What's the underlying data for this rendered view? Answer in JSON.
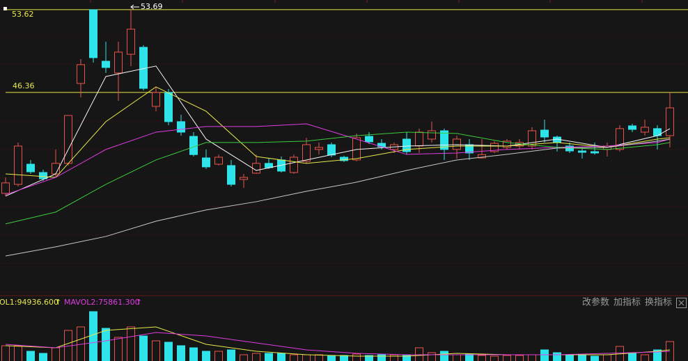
{
  "chart_data": {
    "type": "candlestick",
    "ylim": [
      28.54,
      54.47
    ],
    "grid": true,
    "ygrid": [
      51.36,
      48.86,
      46.36,
      43.86,
      41.36,
      38.86,
      36.36,
      33.86,
      31.36,
      28.86
    ],
    "up_color": "#e8544c",
    "down_color": "#2fe3ea",
    "open": [
      37.51,
      38.3,
      40.07,
      39.34,
      39.22,
      40.14,
      47.15,
      53.62,
      49.1,
      48.07,
      49.71,
      50.32,
      45.14,
      46.36,
      43.8,
      42.51,
      40.62,
      40.07,
      39.95,
      38.73,
      39.28,
      40.14,
      40.44,
      39.34,
      40.32,
      41.36,
      41.78,
      40.68,
      40.44,
      42.51,
      41.9,
      41.36,
      42.27,
      41.66,
      42.27,
      43.0,
      41.36,
      41.78,
      40.62,
      41.17,
      41.54,
      41.66,
      41.66,
      43.06,
      42.45,
      41.66,
      41.23,
      41.17,
      41.36,
      41.36,
      43.43,
      42.88,
      43.19,
      42.57
    ],
    "high": [
      38.91,
      41.97,
      40.44,
      39.59,
      41.36,
      44.34,
      49.29,
      53.62,
      50.81,
      50.81,
      53.69,
      50.51,
      46.85,
      46.66,
      44.41,
      42.88,
      41.36,
      40.91,
      40.44,
      39.22,
      40.91,
      40.56,
      40.74,
      40.91,
      42.39,
      41.97,
      41.97,
      40.81,
      42.76,
      42.88,
      42.27,
      41.97,
      42.88,
      43.19,
      43.8,
      43.19,
      42.57,
      42.27,
      42.27,
      42.09,
      42.27,
      42.27,
      43.31,
      43.98,
      42.57,
      41.97,
      41.54,
      41.97,
      41.97,
      43.49,
      43.61,
      43.98,
      43.49,
      46.36
    ],
    "low": [
      37.27,
      38.12,
      39.22,
      38.61,
      38.91,
      39.95,
      45.93,
      48.98,
      48.07,
      45.62,
      48.67,
      46.54,
      44.71,
      43.49,
      42.57,
      40.74,
      39.65,
      39.95,
      38.12,
      37.99,
      39.22,
      39.65,
      39.34,
      39.22,
      40.14,
      40.91,
      40.68,
      40.26,
      40.32,
      41.84,
      41.36,
      41.05,
      40.91,
      41.05,
      41.97,
      40.44,
      40.56,
      40.44,
      40.56,
      41.05,
      41.36,
      41.36,
      41.36,
      41.97,
      41.17,
      41.05,
      40.56,
      40.91,
      40.74,
      41.17,
      42.88,
      42.57,
      41.36,
      41.54
    ],
    "close": [
      38.43,
      41.66,
      39.4,
      38.79,
      40.14,
      44.34,
      48.8,
      49.41,
      48.55,
      49.9,
      51.91,
      46.72,
      46.36,
      43.8,
      42.88,
      40.91,
      39.83,
      40.68,
      38.3,
      38.91,
      40.14,
      39.77,
      39.46,
      40.68,
      41.78,
      41.54,
      40.87,
      40.38,
      42.39,
      42.03,
      41.6,
      41.78,
      41.17,
      42.88,
      43.0,
      41.36,
      42.27,
      41.05,
      40.91,
      41.9,
      42.09,
      41.97,
      43.0,
      42.45,
      41.97,
      41.23,
      41.11,
      41.05,
      41.66,
      43.19,
      43.12,
      43.31,
      42.57,
      45.01
    ],
    "ma_x": [
      0,
      4,
      8,
      12,
      16,
      20,
      24,
      28,
      32,
      36,
      40,
      44,
      48,
      52,
      53
    ],
    "series": [
      {
        "color": "#f4f4f4",
        "values": [
          37.27,
          39.22,
          47.76,
          48.68,
          42.27,
          39.52,
          40.44,
          41.36,
          41.66,
          41.78,
          41.66,
          42.27,
          41.54,
          42.57,
          43.19
        ]
      },
      {
        "color": "#e8e84a",
        "values": [
          39.22,
          38.91,
          43.8,
          46.85,
          44.71,
          40.74,
          40.14,
          40.56,
          41.36,
          41.66,
          41.66,
          41.97,
          41.54,
          42.27,
          42.39
        ]
      },
      {
        "color": "#e03ce0",
        "values": [
          37.39,
          38.91,
          41.36,
          42.88,
          43.37,
          43.37,
          43.61,
          42.27,
          40.93,
          41.05,
          41.36,
          41.54,
          41.66,
          41.97,
          42.27
        ]
      },
      {
        "color": "#3ccc3c",
        "values": [
          34.83,
          35.87,
          38.3,
          40.44,
          41.97,
          41.97,
          42.09,
          42.57,
          42.88,
          42.76,
          41.97,
          41.54,
          41.36,
          41.78,
          41.97
        ]
      },
      {
        "color": "#c8c8c8",
        "values": [
          32.02,
          32.82,
          33.73,
          35.07,
          36.05,
          36.78,
          37.69,
          38.49,
          39.52,
          40.44,
          40.93,
          41.48,
          41.54,
          42.09,
          42.27
        ]
      }
    ],
    "price_marks": [
      53.62,
      46.36
    ],
    "price_mark_color": "#e8e84a",
    "high_label": 53.69,
    "volume": {
      "ylim": [
        0,
        421800
      ],
      "values": [
        125400,
        125400,
        79800,
        62700,
        108300,
        250800,
        279300,
        404700,
        267900,
        193800,
        279300,
        205200,
        165300,
        153900,
        125400,
        108300,
        79800,
        79800,
        91200,
        51300,
        62700,
        62700,
        62700,
        51300,
        51300,
        51300,
        45600,
        45600,
        57000,
        45600,
        51300,
        51300,
        45600,
        108300,
        68400,
        79800,
        51300,
        57000,
        45600,
        39900,
        45600,
        45600,
        51300,
        91200,
        68400,
        45600,
        45600,
        39900,
        51300,
        119700,
        62700,
        51300,
        91200,
        159600
      ],
      "series": [
        {
          "color": "#e8e84a",
          "values": [
            125400,
            108300,
            250800,
            279300,
            136800,
            79800,
            51300,
            39900,
            39900,
            62700,
            51300,
            51300,
            51300,
            79800,
            91200
          ]
        },
        {
          "color": "#e03ce0",
          "values": [
            136800,
            108300,
            165300,
            233700,
            205200,
            148200,
            91200,
            62700,
            51300,
            51300,
            51300,
            51300,
            62700,
            74100,
            79800
          ]
        }
      ],
      "labels": [
        "OL1:94936.600",
        "MAVOL2:75861.300"
      ],
      "arrow": "↑"
    },
    "toolbar": [
      "改参数",
      "加指标",
      "换指标"
    ]
  }
}
